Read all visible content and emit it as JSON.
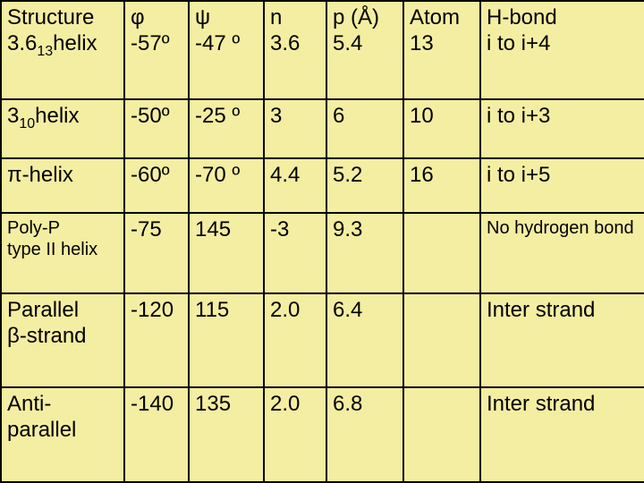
{
  "table": {
    "background_color": "#f4eea2",
    "border_color": "#000000",
    "font_family": "Arial",
    "header": {
      "structure_top": "Structure",
      "structure_bottom_prefix": "3.6",
      "structure_bottom_sub": "13",
      "structure_bottom_suffix": "helix",
      "phi_label": "φ",
      "phi_val": "-57º",
      "psi_label": "ψ",
      "psi_val": "-47 º",
      "n_label": "n",
      "n_val": "3.6",
      "p_label": "p (Å)",
      "p_val": "5.4",
      "atom_label": "Atom",
      "atom_val": "13",
      "hbond_label": "H-bond",
      "hbond_val": "i to i+4"
    },
    "rows": [
      {
        "structure_prefix": "3",
        "structure_sub": "10",
        "structure_suffix": "helix",
        "phi": "-50º",
        "psi": "-25 º",
        "n": "3",
        "p": "6",
        "atom": "10",
        "hbond": "i to i+3"
      },
      {
        "structure_prefix": "π",
        "structure_sub": "",
        "structure_suffix": "-helix",
        "phi": "-60º",
        "psi": "-70 º",
        "n": "4.4",
        "p": "5.2",
        "atom": "16",
        "hbond": "i to i+5"
      }
    ],
    "polyp": {
      "structure_l1": "Poly-P",
      "structure_l2": "type II helix",
      "phi": "-75",
      "psi": "145",
      "n": "-3",
      "p": "9.3",
      "atom": "",
      "hbond": "No hydrogen bond"
    },
    "parallel": {
      "structure_l1": "Parallel",
      "structure_l2_prefix": "β",
      "structure_l2_suffix": "-strand",
      "phi": "-120",
      "psi": "115",
      "n": "2.0",
      "p": "6.4",
      "atom": "",
      "hbond": "Inter strand"
    },
    "antiparallel": {
      "structure_l1": "Anti-",
      "structure_l2": "parallel",
      "phi": "-140",
      "psi": "135",
      "n": "2.0",
      "p": "6.8",
      "atom": "",
      "hbond": "Inter strand"
    }
  }
}
